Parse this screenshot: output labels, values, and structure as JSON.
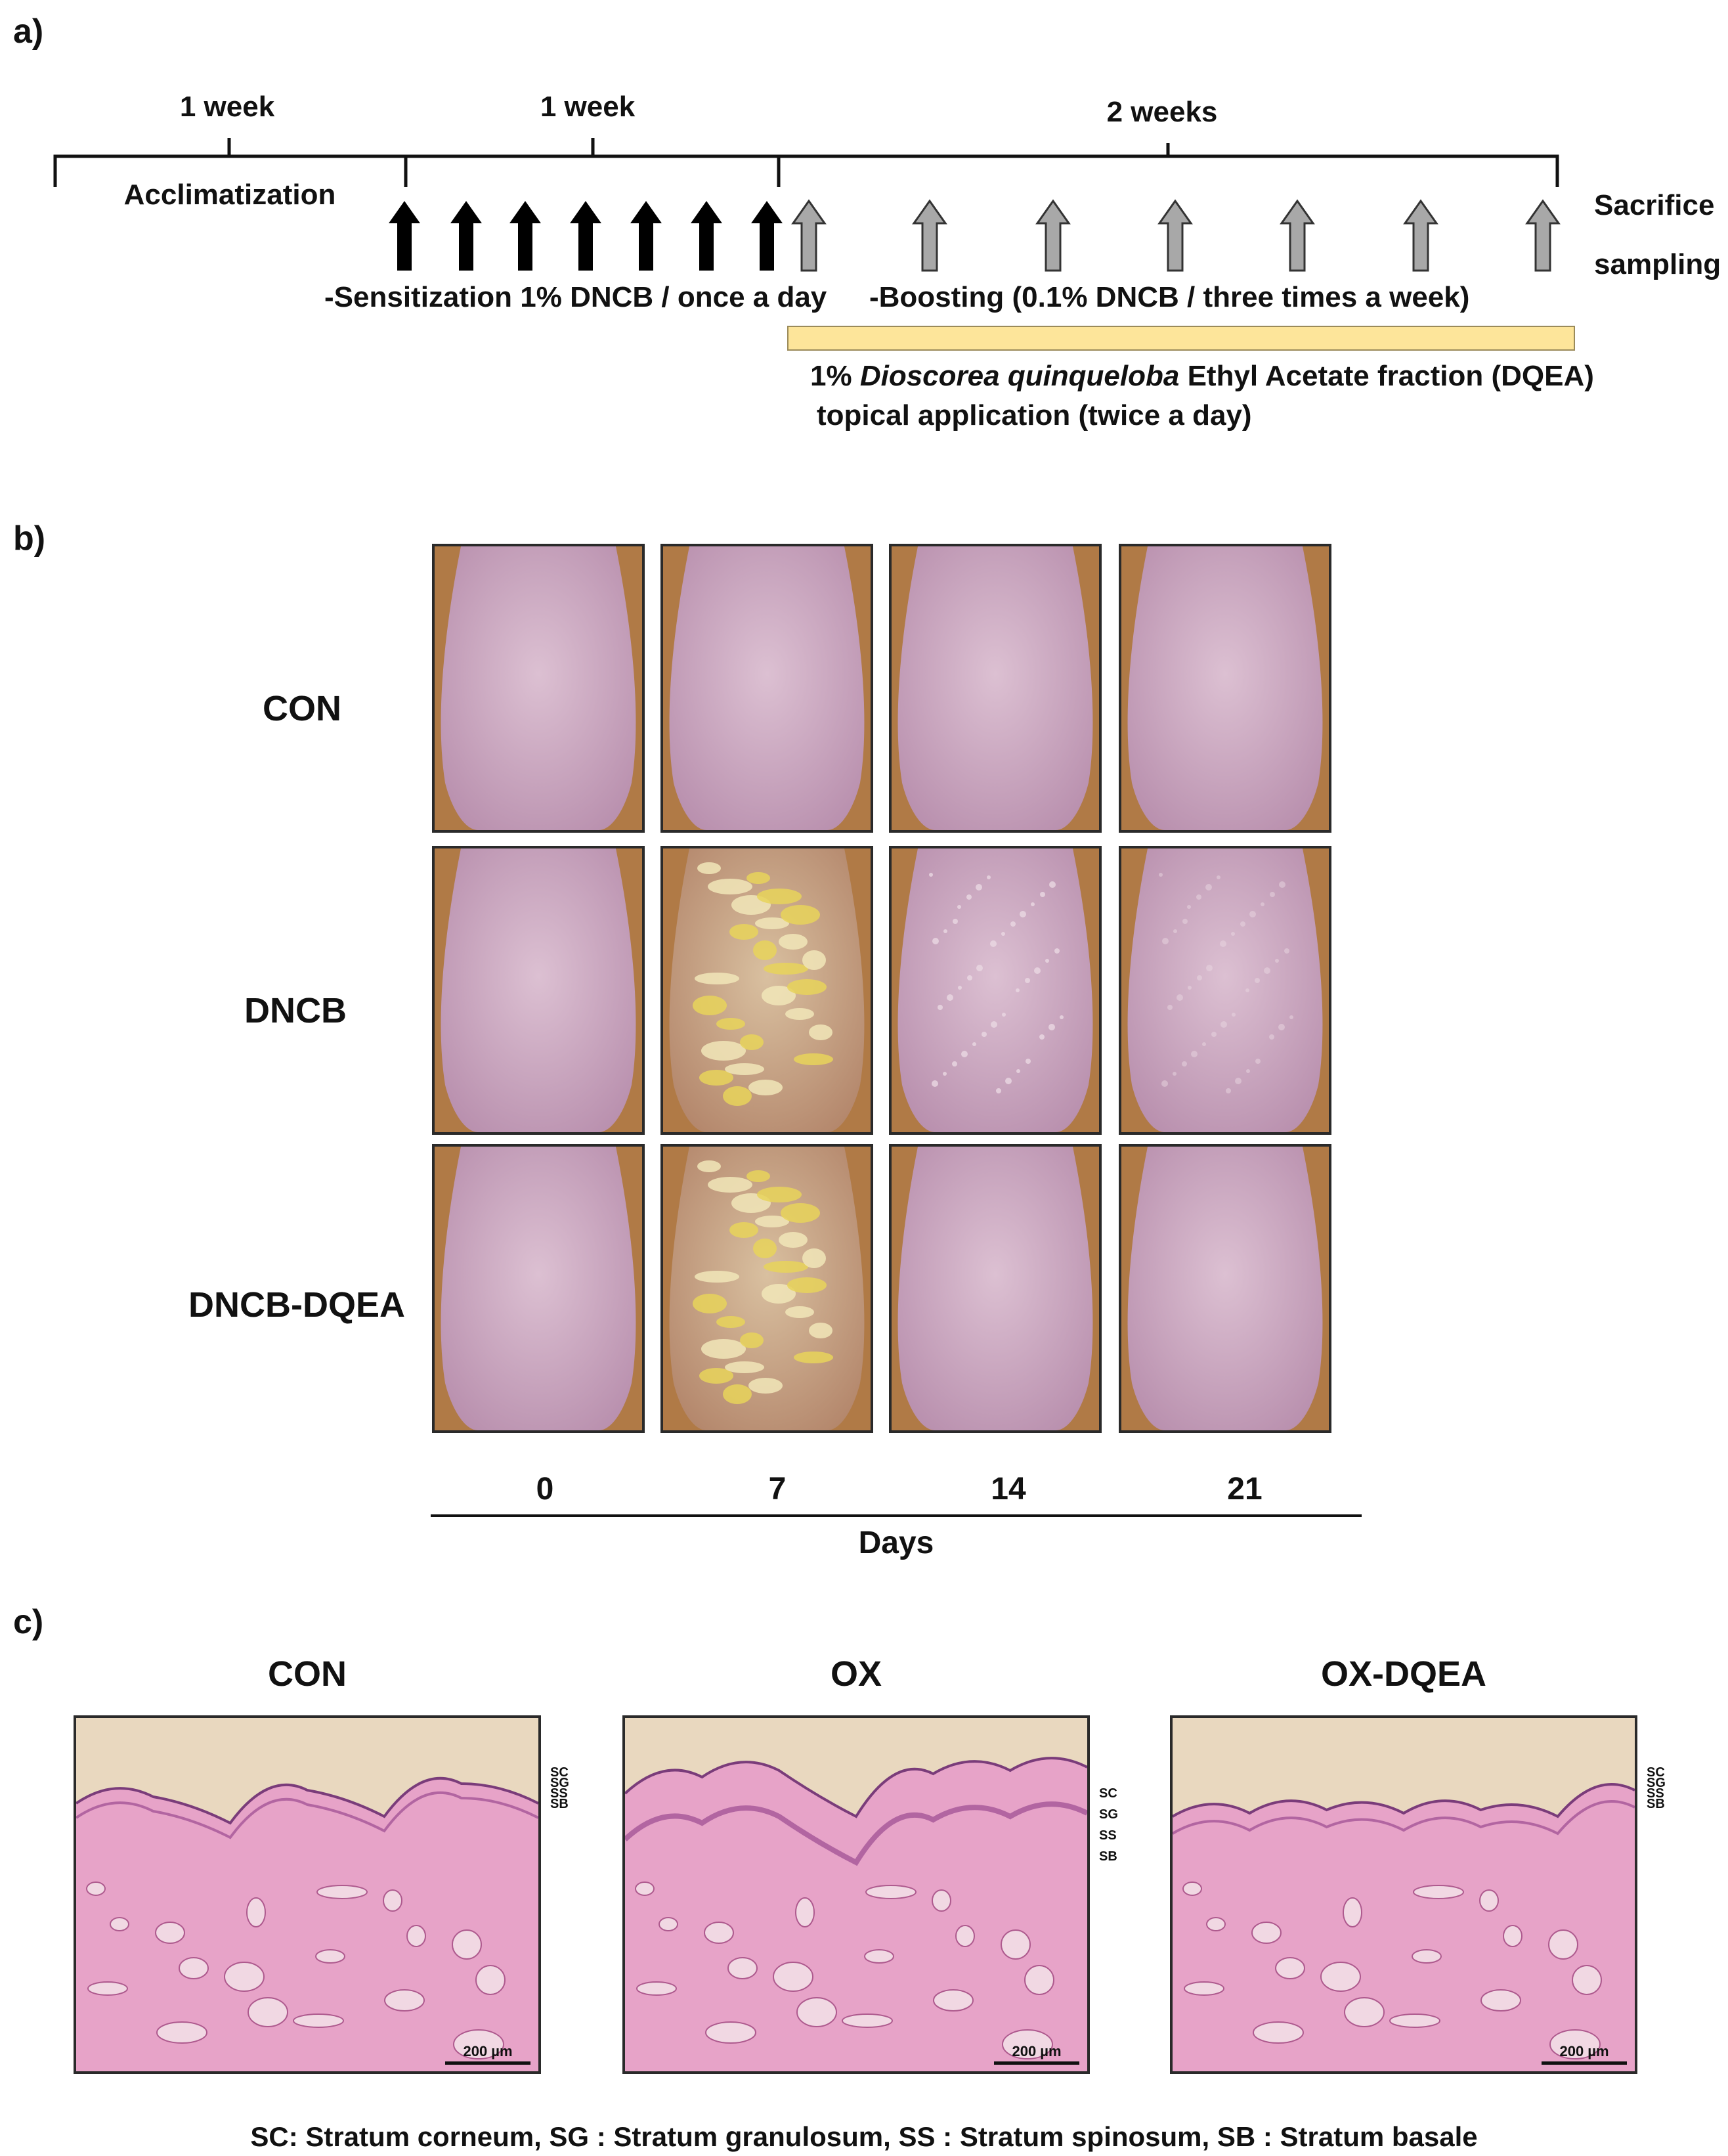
{
  "panel_a": {
    "label": "a)",
    "period_1": "1 week",
    "period_2": "1 week",
    "period_3": "2 weeks",
    "acclimatization": "Acclimatization",
    "sacrifice": "Sacrifice",
    "sampling": "sampling",
    "sensitization": "-Sensitization 1% DNCB / once a day",
    "boosting": "-Boosting (0.1% DNCB  / three times a week)",
    "treatment_line1_prefix": "1% ",
    "treatment_line1_italic": "Dioscorea quinqueloba",
    "treatment_line1_suffix": " Ethyl Acetate fraction (DQEA)",
    "treatment_line2": "topical application (twice a day)",
    "treatment_bar_color": "#fde59a",
    "black_arrow_count": 7,
    "gray_arrow_count": 7
  },
  "panel_b": {
    "label": "b)",
    "rows": [
      "CON",
      "DNCB",
      "DNCB-DQEA"
    ],
    "days": [
      "0",
      "7",
      "14",
      "21"
    ],
    "axis_label": "Days"
  },
  "panel_c": {
    "label": "c)",
    "titles": [
      "CON",
      "OX",
      "OX-DQEA"
    ],
    "layer_tags": [
      "SC",
      "SG",
      "SS",
      "SB"
    ],
    "scale_label": "200 µm",
    "legend": "SC: Stratum corneum,  SG : Stratum granulosum,  SS : Stratum spinosum,  SB : Stratum basale"
  }
}
